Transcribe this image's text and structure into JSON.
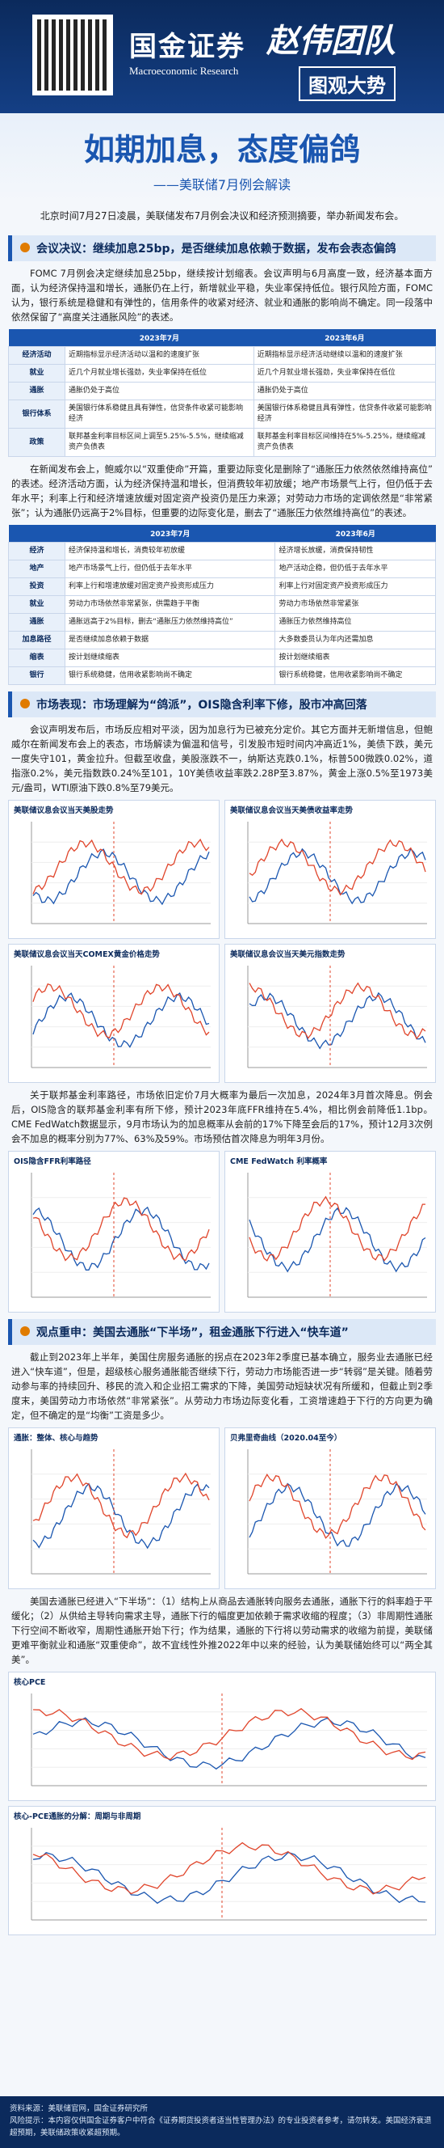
{
  "header": {
    "brand": "国金证券",
    "brand_en": "Macroeconomic Research",
    "team": "赵伟团队",
    "series": "图观大势"
  },
  "title": "如期加息，态度偏鸽",
  "subtitle": "——美联储7月例会解读",
  "intro": "北京时间7月27日凌晨，美联储发布7月例会决议和经济预测摘要，举办新闻发布会。",
  "sections": [
    {
      "heading": "会议决议：继续加息25bp，是否继续加息依赖于数据，发布会表态偏鸽",
      "paragraphs": [
        "FOMC 7月例会决定继续加息25bp，继续按计划缩表。会议声明与6月高度一致，经济基本面方面，认为经济保持温和增长，通胀仍在上行，新增就业平稳，失业率保持低位。银行风险方面，FOMC认为，银行系统是稳健和有弹性的，信用条件的收紧对经济、就业和通胀的影响尚不确定。同一段落中依然保留了“高度关注通胀风险”的表述。",
        "在新闻发布会上，鲍威尔以“双重使命”开篇，重要边际变化是删除了“通胀压力依然依然维持高位”的表述。经济活动方面，认为经济保持温和增长，但消费较年初放缓；地产市场景气上行，但仍低于去年水平；利率上行和经济增速放缓对固定资产投资仍是压力来源；对劳动力市场的定调依然是“非常紧张”；认为通胀仍远高于2%目标，但重要的边际变化是，删去了“通胀压力依然维持高位”的表述。"
      ],
      "tables": [
        {
          "header": [
            "",
            "2023年7月",
            "2023年6月"
          ],
          "rows": [
            [
              "经济活动",
              "近期指标显示经济活动以温和的速度扩张",
              "近期指标显示经济活动继续以温和的速度扩张"
            ],
            [
              "就业",
              "近几个月就业增长强劲，失业率保持在低位",
              "近几个月就业增长强劲，失业率保持在低位"
            ],
            [
              "通胀",
              "通胀仍处于高位",
              "通胀仍处于高位"
            ],
            [
              "银行体系",
              "美国银行体系稳健且具有弹性，信贷条件收紧可能影响经济",
              "美国银行体系稳健且具有弹性，信贷条件收紧可能影响经济"
            ],
            [
              "政策",
              "联邦基金利率目标区间上调至5.25%-5.5%，继续缩减资产负债表",
              "联邦基金利率目标区间维持在5%-5.25%，继续缩减资产负债表"
            ]
          ]
        },
        {
          "header": [
            "",
            "2023年7月",
            "2023年6月"
          ],
          "rows": [
            [
              "经济",
              "经济保持温和增长，消费较年初放缓",
              "经济增长放缓，消费保持韧性"
            ],
            [
              "地产",
              "地产市场景气上行，但仍低于去年水平",
              "地产活动企稳，但仍低于去年水平"
            ],
            [
              "投资",
              "利率上行和增速放缓对固定资产投资形成压力",
              "利率上行对固定资产投资形成压力"
            ],
            [
              "就业",
              "劳动力市场依然非常紧张，供需趋于平衡",
              "劳动力市场依然非常紧张"
            ],
            [
              "通胀",
              "通胀远高于2%目标，删去“通胀压力依然维持高位”",
              "通胀压力依然维持高位"
            ],
            [
              "加息路径",
              "是否继续加息依赖于数据",
              "大多数委员认为年内还需加息"
            ],
            [
              "缩表",
              "按计划继续缩表",
              "按计划继续缩表"
            ],
            [
              "银行",
              "银行系统稳健，信用收紧影响尚不确定",
              "银行系统稳健，信用收紧影响尚不确定"
            ]
          ]
        }
      ]
    },
    {
      "heading": "市场表现：市场理解为“鸽派”，OIS隐含利率下修，股市冲高回落",
      "paragraphs": [
        "会议声明发布后，市场反应相对平淡，因为加息行为已被充分定价。其它方面并无新增信息，但鲍威尔在新闻发布会上的表态，市场解读为偏温和信号，引发股市短时间内冲高近1%，美债下跌，美元一度失守101，黄金拉升。但截至收盘，美股涨跌不一，纳斯达克跌0.1%，标普500微跌0.02%，道指涨0.2%，美元指数跌0.24%至101，10Y美债收益率跌2.28P至3.87%，黄金上涨0.5%至1973美元/盎司，WTI原油下跌0.8%至79美元。",
        "关于联邦基金利率路径，市场依旧定价7月大概率为最后一次加息，2024年3月首次降息。例会后，OIS隐含的联邦基金利率有所下修，预计2023年底FFR维持在5.4%，相比例会前降低1.1bp。CME FedWatch数据显示，9月市场认为的加息概率从会前的17%下降至会后的17%，预计12月3次例会不加息的概率分别为77%、63%及59%。市场预估首次降息为明年3月份。"
      ],
      "figures": [
        "美联储议息会议当天美股走势",
        "美联储议息会议当天美债收益率走势",
        "美联储议息会议当天COMEX黄金价格走势",
        "美联储议息会议当天美元指数走势",
        "OIS隐含FFR利率路径",
        "CME FedWatch 利率概率"
      ]
    },
    {
      "heading": "观点重申：美国去通胀“下半场”，租金通胀下行进入“快车道”",
      "paragraphs": [
        "截止到2023年上半年，美国住房服务通胀的拐点在2023年2季度已基本确立，服务业去通胀已经进入“快车道”，但是，超级核心服务通胀能否继续下行，劳动力市场能否进一步“转弱”是关键。随着劳动参与率的持续回升、移民的流入和企业招工需求的下降，美国劳动短缺状况有所缓和，但截止到2季度末，美国劳动力市场依然“非常紧张”。从劳动力市场边际变化看，工资增速趋于下行的方向更为确定，但不确定的是“均衡”工资是多少。",
        "美国去通胀已经进入“下半场”：（1）结构上从商品去通胀转向服务去通胀，通胀下行的斜率趋于平缓化；（2）从供给主导转向需求主导，通胀下行的幅度更加依赖于需求收缩的程度；（3）非周期性通胀下行空间不断收窄，周期性通胀开始下行；作为结果，通胀的下行将以劳动需求的收缩为前提，美联储更难平衡就业和通胀“双重使命”，故不宜线性外推2022年中以来的经验，认为美联储始终可以“两全其美”。"
      ],
      "figures": [
        "通胀：整体、核心与趋势",
        "贝弗里奇曲线（2020.04至今）",
        "核心PCE",
        "核心-PCE通胀的分解：周期与非周期"
      ]
    }
  ],
  "footer": {
    "source": "资料来源：美联储官网，国金证券研究所",
    "disclaimer": "风险提示：本内容仅供国金证券客户中符合《证券期货投资者适当性管理办法》的专业投资者参考，请勿转发。美国经济衰退超预期，美联储政策收紧超预期。"
  }
}
